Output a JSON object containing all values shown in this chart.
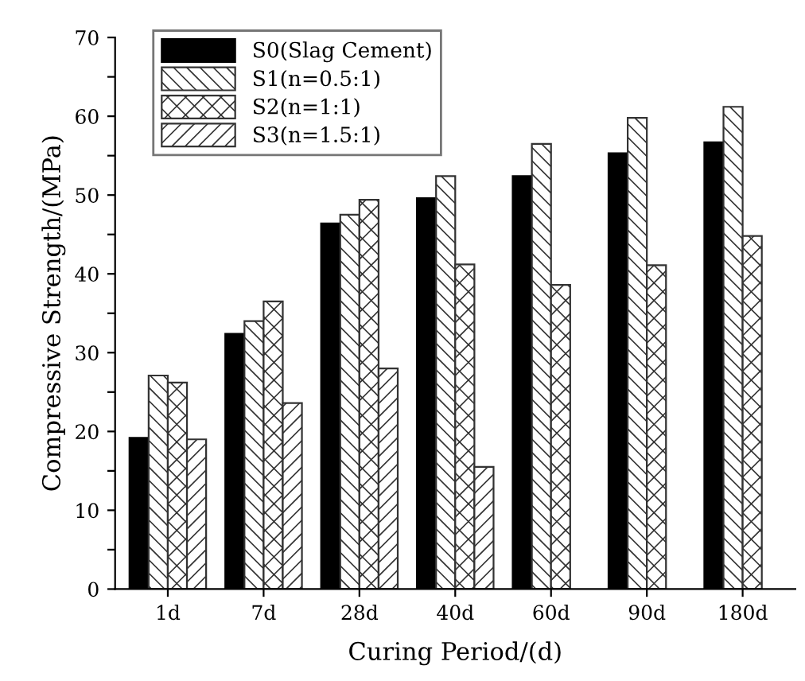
{
  "chart_data": {
    "type": "bar",
    "xlabel": "Curing Period/(d)",
    "ylabel": "Compressive Strength/(MPa)",
    "categories": [
      "1d",
      "7d",
      "28d",
      "40d",
      "60d",
      "90d",
      "180d"
    ],
    "series": [
      {
        "name": "S0(Slag Cement)",
        "color": "#000000",
        "values": [
          19.2,
          32.4,
          46.4,
          49.6,
          52.4,
          55.3,
          56.7
        ]
      },
      {
        "name": "S1(n=0.5:1)",
        "color": "#333333",
        "values": [
          27.1,
          34.0,
          47.5,
          52.4,
          56.5,
          59.8,
          61.2
        ]
      },
      {
        "name": "S2(n=1:1)",
        "color": "#333333",
        "values": [
          26.2,
          36.5,
          49.4,
          41.2,
          38.6,
          41.1,
          44.8
        ]
      },
      {
        "name": "S3(n=1.5:1)",
        "color": "#333333",
        "values": [
          19.0,
          23.6,
          28.0,
          15.5,
          null,
          null,
          null
        ]
      }
    ],
    "ylim": [
      0,
      70
    ],
    "yticks": [
      0,
      {
        "value": 5,
        "label": null
      },
      10,
      {
        "value": 15,
        "label": null
      },
      20,
      {
        "value": 25,
        "label": null
      },
      30,
      {
        "value": 35,
        "label": null
      },
      40,
      {
        "value": 45,
        "label": null
      },
      50,
      {
        "value": 55,
        "label": null
      },
      60,
      {
        "value": 65,
        "label": null
      },
      70
    ],
    "grid": false,
    "legend": "top left"
  }
}
